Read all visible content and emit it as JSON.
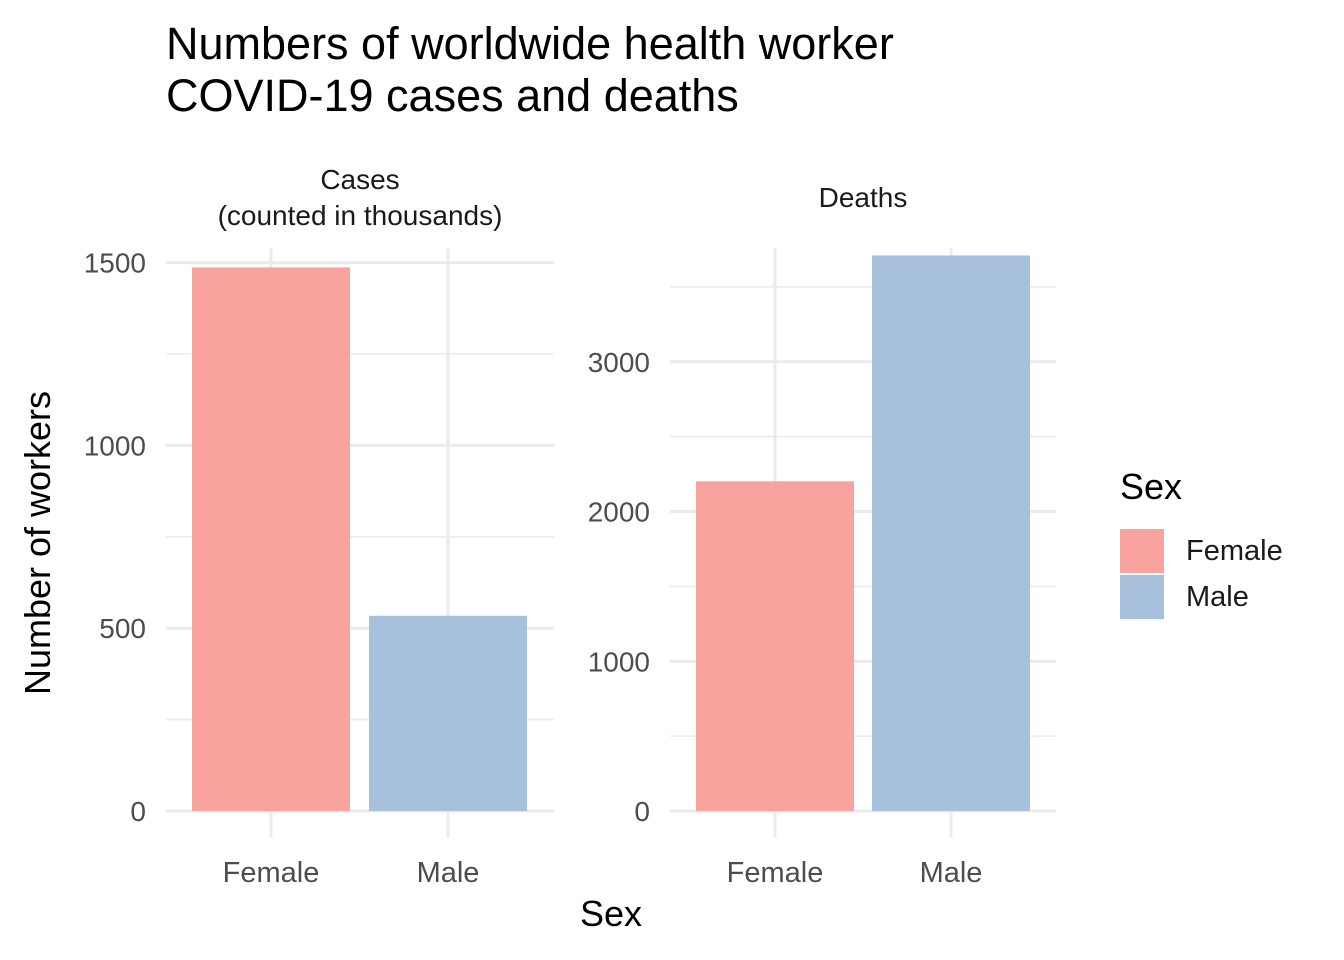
{
  "title_line1": "Numbers of worldwide health worker",
  "title_line2": "COVID-19 cases and deaths",
  "xlabel": "Sex",
  "ylabel": "Number of workers",
  "legend": {
    "title": "Sex",
    "items": [
      {
        "label": "Female",
        "color": "#F8A39E"
      },
      {
        "label": "Male",
        "color": "#A7C1DC"
      }
    ],
    "placement": "right"
  },
  "chart_data": [
    {
      "type": "bar",
      "panel_title": "Cases\n(counted in thousands)",
      "categories": [
        "Female",
        "Male"
      ],
      "values": [
        1487,
        534
      ],
      "colors": [
        "#F8A39E",
        "#A7C1DC"
      ],
      "ylim": [
        0,
        1540
      ],
      "yticks": [
        0,
        500,
        1000,
        1500
      ],
      "ytick_labels": [
        "0",
        "500",
        "1000",
        "1500"
      ],
      "grid": true
    },
    {
      "type": "bar",
      "panel_title": "Deaths",
      "categories": [
        "Female",
        "Male"
      ],
      "values": [
        2202,
        3710
      ],
      "colors": [
        "#F8A39E",
        "#A7C1DC"
      ],
      "ylim": [
        0,
        3760
      ],
      "yticks": [
        0,
        1000,
        2000,
        3000
      ],
      "ytick_labels": [
        "0",
        "1000",
        "2000",
        "3000"
      ],
      "grid": true
    }
  ]
}
